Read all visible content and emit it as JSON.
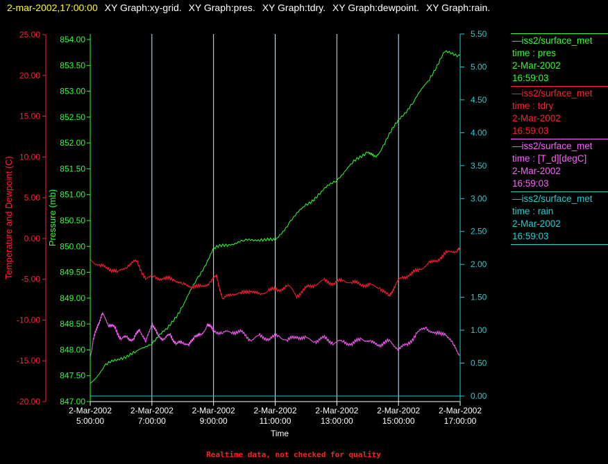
{
  "header": {
    "timestamp": "2-mar-2002,17:00:00",
    "labels": [
      "XY Graph:xy-grid.",
      "XY Graph:pres.",
      "XY Graph:tdry.",
      "XY Graph:dewpoint.",
      "XY Graph:rain."
    ]
  },
  "colors": {
    "timestamp": "#ffff00",
    "header_text": "#ffffff",
    "pres": "#30ff30",
    "tdry": "#ff2030",
    "dewpoint": "#ff60ff",
    "rain": "#20d0d0",
    "grid": "#d0f0ff",
    "axis_text": "#ffffff"
  },
  "legend": [
    {
      "source": "iss2/surface_met",
      "var": "time : pres",
      "date": "2-Mar-2002",
      "time": "16:59:03",
      "color": "#30ff30"
    },
    {
      "source": "iss2/surface_met",
      "var": "time : tdry",
      "date": "2-Mar-2002",
      "time": "16:59:03",
      "color": "#ff2030"
    },
    {
      "source": "iss2/surface_met",
      "var": "time : [T_d][degC]",
      "date": "2-Mar-2002",
      "time": "16:59:03",
      "color": "#ff60ff"
    },
    {
      "source": "iss2/surface_met",
      "var": "time : rain",
      "date": "2-Mar-2002",
      "time": "16:59:03",
      "color": "#20d0d0"
    }
  ],
  "footer": "Realtime data, not checked for quality",
  "chart_data": {
    "type": "line",
    "xlabel": "Time",
    "x_ticks": [
      {
        "date": "2-Mar-2002",
        "time": "5:00:00"
      },
      {
        "date": "2-Mar-2002",
        "time": "7:00:00"
      },
      {
        "date": "2-Mar-2002",
        "time": "9:00:00"
      },
      {
        "date": "2-Mar-2002",
        "time": "11:00:00"
      },
      {
        "date": "2-Mar-2002",
        "time": "13:00:00"
      },
      {
        "date": "2-Mar-2002",
        "time": "15:00:00"
      },
      {
        "date": "2-Mar-2002",
        "time": "17:00:00"
      }
    ],
    "xlim": [
      "2-Mar-2002 5:00:00",
      "2-Mar-2002 17:00:00"
    ],
    "grid": "vertical",
    "y_axes": {
      "temp": {
        "label": "Temperature and Dewpoint (C)",
        "range": [
          -20,
          25
        ],
        "ticks": [
          "-20.00",
          "-15.00",
          "-10.00",
          "-5.00",
          "0.00",
          "5.00",
          "10.00",
          "15.00",
          "20.00",
          "25.00"
        ]
      },
      "pres": {
        "label": "Pressure (mb)",
        "range": [
          847.0,
          854.0
        ],
        "ticks": [
          "847.00",
          "847.50",
          "848.00",
          "848.50",
          "849.00",
          "849.50",
          "850.00",
          "850.50",
          "851.00",
          "851.50",
          "852.00",
          "852.50",
          "853.00",
          "853.50",
          "854.00"
        ]
      },
      "rain": {
        "label": "",
        "range": [
          0,
          5.5
        ],
        "ticks": [
          "0.00",
          "0.50",
          "1.00",
          "1.50",
          "2.00",
          "2.50",
          "3.00",
          "3.50",
          "4.00",
          "4.50",
          "5.00",
          "5.50"
        ]
      }
    },
    "series": [
      {
        "name": "time : pres",
        "axis": "pres",
        "key": "pres",
        "x": [
          "2-Mar-2002 5:00",
          "5:30",
          "6:00",
          "6:30",
          "7:00",
          "7:30",
          "8:00",
          "8:30",
          "9:00",
          "9:30",
          "10:00",
          "10:30",
          "11:00",
          "11:30",
          "12:00",
          "12:30",
          "13:00",
          "13:30",
          "14:00",
          "14:15",
          "14:30",
          "15:00",
          "15:30",
          "16:00",
          "16:30",
          "17:00"
        ],
        "hours": [
          5,
          5.5,
          6,
          6.5,
          7,
          7.5,
          8,
          8.5,
          9,
          9.5,
          10,
          10.5,
          11,
          11.5,
          12,
          12.5,
          13,
          13.5,
          14,
          14.25,
          14.5,
          15,
          15.5,
          16,
          16.5,
          17
        ],
        "values": [
          847.35,
          847.7,
          847.85,
          847.95,
          848.15,
          848.4,
          848.85,
          849.4,
          849.95,
          850.05,
          850.1,
          850.15,
          850.1,
          850.5,
          850.8,
          851.05,
          851.3,
          851.6,
          851.85,
          851.7,
          851.95,
          852.45,
          852.8,
          853.25,
          853.75,
          853.7
        ]
      },
      {
        "name": "time : tdry",
        "axis": "temp",
        "key": "tdry",
        "hours": [
          5,
          5.3,
          5.6,
          5.9,
          6.2,
          6.5,
          6.8,
          7.1,
          7.4,
          7.7,
          8.0,
          8.3,
          8.6,
          8.9,
          9.1,
          9.3,
          9.6,
          9.9,
          10.2,
          10.5,
          10.8,
          11.1,
          11.4,
          11.7,
          12.0,
          12.3,
          12.6,
          12.9,
          13.2,
          13.5,
          13.8,
          14.1,
          14.4,
          14.7,
          14.9,
          15.1,
          15.4,
          15.7,
          16.0,
          16.3,
          16.6,
          16.9,
          17
        ],
        "values": [
          -2.5,
          -3.4,
          -3.6,
          -4.2,
          -3.3,
          -2.8,
          -4.9,
          -4.7,
          -5.0,
          -4.9,
          -5.7,
          -5.8,
          -6.0,
          -5.3,
          -4.6,
          -7.5,
          -6.7,
          -6.8,
          -6.3,
          -7.0,
          -6.2,
          -6.4,
          -5.7,
          -7.0,
          -6.1,
          -5.6,
          -5.2,
          -5.5,
          -5.1,
          -5.4,
          -5.6,
          -5.8,
          -6.0,
          -7.2,
          -5.6,
          -4.8,
          -4.4,
          -3.7,
          -3.1,
          -2.5,
          -1.7,
          -1.4,
          -1.4
        ]
      },
      {
        "name": "time : [T_d][degC]",
        "axis": "temp",
        "key": "dewpoint",
        "hours": [
          5,
          5.1,
          5.25,
          5.4,
          5.6,
          5.8,
          6.0,
          6.2,
          6.4,
          6.6,
          6.8,
          7.0,
          7.2,
          7.4,
          7.6,
          7.8,
          8.0,
          8.2,
          8.4,
          8.6,
          8.8,
          9.0,
          9.3,
          9.6,
          9.9,
          10.2,
          10.5,
          10.8,
          11.1,
          11.4,
          11.7,
          12.0,
          12.3,
          12.6,
          12.9,
          13.2,
          13.5,
          13.8,
          14.1,
          14.4,
          14.7,
          15.0,
          15.3,
          15.6,
          15.9,
          16.2,
          16.5,
          16.8,
          17
        ],
        "values": [
          -14.5,
          -12.5,
          -10.5,
          -9.3,
          -10.5,
          -11.0,
          -12.3,
          -12.1,
          -12.5,
          -11.0,
          -12.8,
          -10.3,
          -12.0,
          -12.3,
          -11.8,
          -13.0,
          -12.6,
          -13.2,
          -11.8,
          -12.0,
          -10.5,
          -11.3,
          -11.6,
          -11.4,
          -11.5,
          -12.4,
          -12.0,
          -12.3,
          -11.9,
          -12.5,
          -12.0,
          -12.3,
          -12.6,
          -12.2,
          -12.8,
          -12.6,
          -13.0,
          -12.2,
          -12.8,
          -13.0,
          -12.6,
          -13.5,
          -13.0,
          -11.6,
          -10.9,
          -11.8,
          -11.5,
          -13.2,
          -14.3
        ]
      },
      {
        "name": "time : rain",
        "axis": "rain",
        "key": "rain",
        "hours": [
          5,
          17
        ],
        "values": [
          0.0,
          0.0
        ]
      }
    ]
  }
}
